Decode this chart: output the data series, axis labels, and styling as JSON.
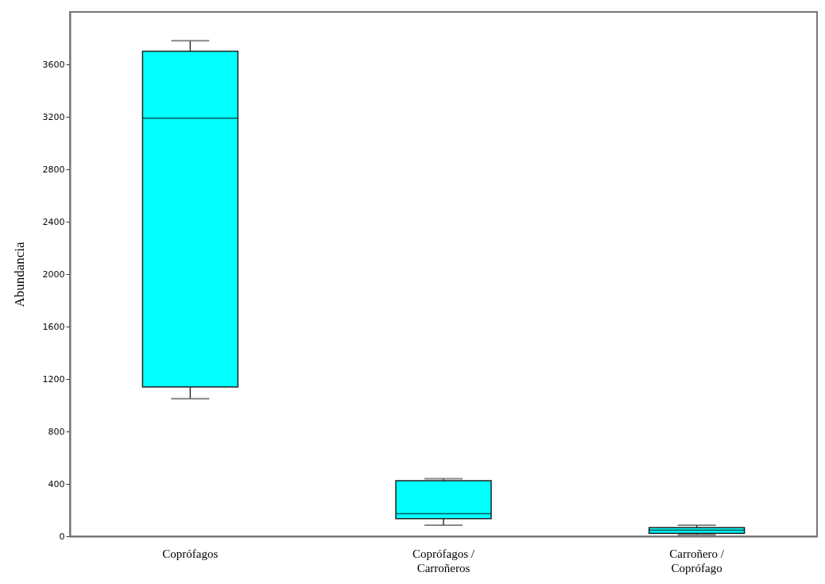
{
  "chart_data": {
    "type": "box",
    "ylabel": "Abundancia",
    "categories": [
      "Coprófagos",
      "Coprófagos /\nCarroñeros",
      "Carroñero /\nCoprófago"
    ],
    "color": "#00ffff",
    "boxes": [
      {
        "low": 1050,
        "q1": 1140,
        "median": 3190,
        "q3": 3700,
        "high": 3780
      },
      {
        "low": 85,
        "q1": 135,
        "median": 172,
        "q3": 425,
        "high": 439
      },
      {
        "low": 12,
        "q1": 22,
        "median": 47,
        "q3": 67,
        "high": 85
      }
    ],
    "ylim": [
      0,
      4000
    ],
    "yticks": [
      0,
      400,
      800,
      1200,
      1600,
      2000,
      2400,
      2800,
      3200,
      3600
    ],
    "grid": false
  }
}
